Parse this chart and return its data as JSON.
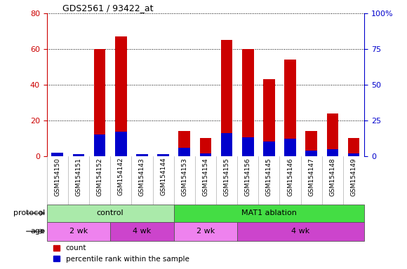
{
  "title": "GDS2561 / 93422_at",
  "samples": [
    "GSM154150",
    "GSM154151",
    "GSM154152",
    "GSM154142",
    "GSM154143",
    "GSM154144",
    "GSM154153",
    "GSM154154",
    "GSM154155",
    "GSM154156",
    "GSM154145",
    "GSM154146",
    "GSM154147",
    "GSM154148",
    "GSM154149"
  ],
  "red_values": [
    0.5,
    1.0,
    60,
    67,
    1.0,
    1.0,
    14,
    10,
    65,
    60,
    43,
    54,
    14,
    24,
    10
  ],
  "blue_values": [
    2.5,
    1.5,
    15,
    17,
    1.5,
    1.5,
    6,
    2,
    16,
    13,
    10,
    12,
    4,
    5,
    2
  ],
  "ylim_left": [
    0,
    80
  ],
  "ylim_right": [
    0,
    100
  ],
  "yticks_left": [
    0,
    20,
    40,
    60,
    80
  ],
  "ytick_labels_right": [
    "0",
    "25",
    "50",
    "75",
    "100%"
  ],
  "yticks_right": [
    0,
    25,
    50,
    75,
    100
  ],
  "protocol_groups": [
    {
      "label": "control",
      "start": 0,
      "end": 6,
      "color": "#aaeaaa"
    },
    {
      "label": "MAT1 ablation",
      "start": 6,
      "end": 15,
      "color": "#44dd44"
    }
  ],
  "age_groups": [
    {
      "label": "2 wk",
      "start": 0,
      "end": 3,
      "color": "#ee82ee"
    },
    {
      "label": "4 wk",
      "start": 3,
      "end": 6,
      "color": "#cc44cc"
    },
    {
      "label": "2 wk",
      "start": 6,
      "end": 9,
      "color": "#ee82ee"
    },
    {
      "label": "4 wk",
      "start": 9,
      "end": 15,
      "color": "#cc44cc"
    }
  ],
  "red_color": "#cc0000",
  "blue_color": "#0000cc",
  "bg_color": "#cccccc",
  "left_axis_color": "#cc0000",
  "right_axis_color": "#0000cc",
  "protocol_label": "protocol",
  "age_label": "age",
  "legend_count": "count",
  "legend_percentile": "percentile rank within the sample"
}
